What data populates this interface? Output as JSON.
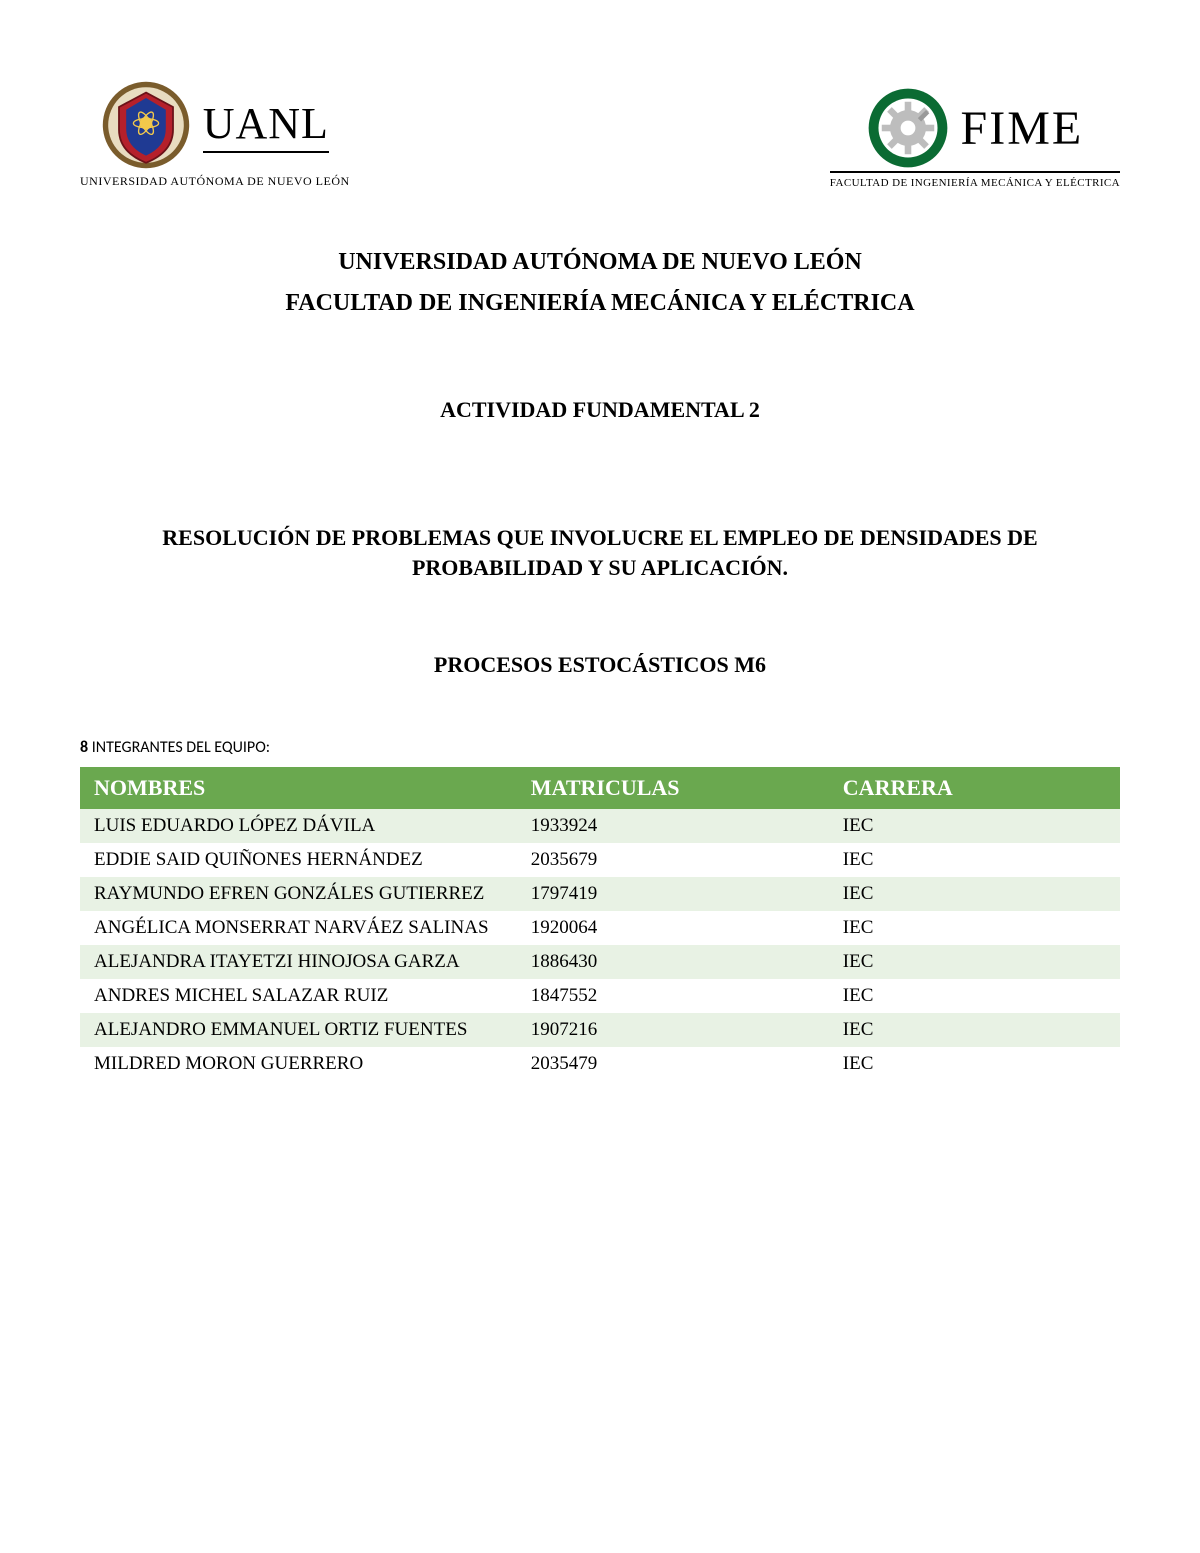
{
  "logos": {
    "uanl": {
      "abbr": "UANL",
      "subtitle": "UNIVERSIDAD AUTÓNOMA DE NUEVO LEÓN",
      "crest_colors": {
        "outer": "#7a5c2c",
        "shield": "#b5202b",
        "inner": "#1f3a93"
      }
    },
    "fime": {
      "abbr": "FIME",
      "subtitle": "FACULTAD DE INGENIERÍA MECÁNICA Y ELÉCTRICA",
      "crest_colors": {
        "ring": "#0b6b33",
        "gear": "#bdbdbd",
        "bg": "#ffffff"
      }
    }
  },
  "headings": {
    "university": "UNIVERSIDAD AUTÓNOMA DE NUEVO LEÓN",
    "faculty": "FACULTAD DE INGENIERÍA MECÁNICA Y ELÉCTRICA",
    "activity": "ACTIVIDAD FUNDAMENTAL 2",
    "resolution": "RESOLUCIÓN DE PROBLEMAS QUE INVOLUCRE EL EMPLEO DE DENSIDADES DE PROBABILIDAD Y SU APLICACIÓN.",
    "process": "PROCESOS ESTOCÁSTICOS M6"
  },
  "team": {
    "count": "8",
    "label": "INTEGRANTES DEL EQUIPO:"
  },
  "table": {
    "header_bg": "#6aa84f",
    "row_alt_bg": "#e8f2e4",
    "row_bg": "#ffffff",
    "columns": {
      "name": "NOMBRES",
      "matricula": "MATRICULAS",
      "carrera": "CARRERA"
    },
    "rows": [
      {
        "name": "LUIS EDUARDO LÓPEZ DÁVILA",
        "matricula": "1933924",
        "carrera": "IEC",
        "tall": false
      },
      {
        "name": "EDDIE SAID QUIÑONES HERNÁNDEZ",
        "matricula": "2035679",
        "carrera": "IEC",
        "tall": false
      },
      {
        "name": "RAYMUNDO EFREN GONZÁLES GUTIERREZ",
        "matricula": "1797419",
        "carrera": "IEC",
        "tall": true
      },
      {
        "name": "ANGÉLICA MONSERRAT NARVÁEZ SALINAS",
        "matricula": "1920064",
        "carrera": "IEC",
        "tall": true
      },
      {
        "name": "ALEJANDRA ITAYETZI HINOJOSA GARZA",
        "matricula": "1886430",
        "carrera": "IEC",
        "tall": true
      },
      {
        "name": "ANDRES MICHEL SALAZAR RUIZ",
        "matricula": "1847552",
        "carrera": "IEC",
        "tall": false
      },
      {
        "name": "ALEJANDRO EMMANUEL ORTIZ FUENTES",
        "matricula": "1907216",
        "carrera": "IEC",
        "tall": true
      },
      {
        "name": "MILDRED MORON GUERRERO",
        "matricula": "2035479",
        "carrera": "IEC",
        "tall": false
      }
    ]
  }
}
